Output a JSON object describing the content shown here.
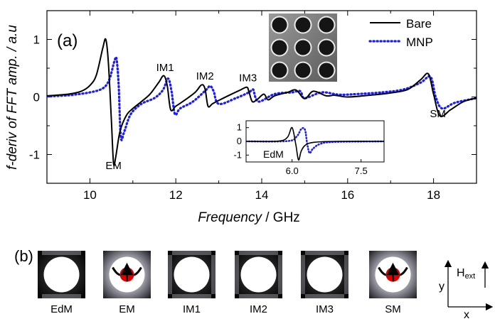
{
  "chart_data": [
    {
      "panel_label": "(a)",
      "type": "line",
      "title": "",
      "xlabel_italic": "Frequency",
      "xlabel_rest": " / GHz",
      "ylabel": "f-deriv of FFT amp. / a.u",
      "xlim": [
        9,
        19
      ],
      "ylim": [
        -1.5,
        1.5
      ],
      "xticks": [
        "10",
        "12",
        "14",
        "16",
        "18"
      ],
      "xtick_values": [
        10,
        12,
        14,
        16,
        18
      ],
      "yticks": [
        "-1",
        "0",
        "1"
      ],
      "ytick_values": [
        -1,
        0,
        1
      ],
      "legend": {
        "placement": "top-right",
        "entries": [
          "Bare",
          "MNP"
        ]
      },
      "series": [
        {
          "name": "Bare",
          "style": "solid",
          "color": "#000000",
          "x": [
            9.0,
            9.5,
            9.8,
            10.0,
            10.15,
            10.3,
            10.37,
            10.43,
            10.5,
            10.55,
            10.6,
            10.7,
            10.85,
            11.0,
            11.2,
            11.4,
            11.6,
            11.72,
            11.8,
            11.88,
            12.0,
            12.2,
            12.45,
            12.6,
            12.68,
            12.75,
            12.85,
            13.0,
            13.3,
            13.5,
            13.65,
            13.7,
            13.78,
            13.9,
            14.05,
            14.15,
            14.3,
            14.6,
            14.8,
            15.0,
            15.2,
            15.5,
            15.7,
            16.0,
            16.5,
            17.0,
            17.4,
            17.7,
            17.88,
            18.0,
            18.15,
            18.4,
            18.7,
            19.0
          ],
          "y": [
            0.02,
            0.05,
            0.1,
            0.2,
            0.38,
            0.85,
            1.0,
            0.6,
            -0.4,
            -1.15,
            -1.05,
            -0.6,
            -0.32,
            -0.2,
            -0.08,
            0.05,
            0.25,
            0.37,
            0.2,
            -0.22,
            -0.16,
            -0.06,
            0.08,
            0.21,
            0.14,
            -0.16,
            -0.12,
            -0.06,
            0.05,
            0.12,
            0.17,
            0.1,
            -0.08,
            -0.04,
            0.05,
            -0.05,
            0.02,
            0.08,
            0.12,
            -0.03,
            0.1,
            0.02,
            0.03,
            0.0,
            0.03,
            0.07,
            0.13,
            0.3,
            0.4,
            0.05,
            -0.33,
            -0.22,
            -0.08,
            -0.02
          ]
        },
        {
          "name": "MNP",
          "style": "dotted",
          "color": "#1a1aff",
          "x": [
            9.0,
            9.5,
            10.0,
            10.3,
            10.45,
            10.57,
            10.62,
            10.67,
            10.72,
            10.8,
            10.95,
            11.2,
            11.5,
            11.7,
            11.82,
            11.9,
            11.98,
            12.1,
            12.4,
            12.7,
            12.8,
            12.88,
            13.0,
            13.4,
            13.7,
            13.8,
            13.85,
            13.95,
            14.3,
            14.7,
            14.9,
            15.0,
            15.4,
            15.8,
            16.2,
            16.8,
            17.3,
            17.7,
            17.93,
            18.05,
            18.2,
            18.5,
            19.0
          ],
          "y": [
            0.01,
            0.03,
            0.08,
            0.15,
            0.3,
            0.62,
            0.66,
            0.2,
            -0.7,
            -0.6,
            -0.3,
            -0.12,
            -0.02,
            0.12,
            0.32,
            0.1,
            -0.3,
            -0.2,
            -0.08,
            0.12,
            0.19,
            0.1,
            -0.12,
            -0.02,
            0.08,
            0.13,
            0.0,
            -0.08,
            0.05,
            0.08,
            0.1,
            -0.02,
            0.08,
            0.04,
            0.05,
            0.08,
            0.13,
            0.25,
            0.35,
            0.0,
            -0.2,
            -0.1,
            -0.02
          ]
        }
      ],
      "annotations": [
        "EM",
        "IM1",
        "IM2",
        "IM3",
        "SM"
      ],
      "annotation_x": [
        10.55,
        11.75,
        12.68,
        13.68,
        18.1
      ],
      "annotation_y": [
        -1.25,
        0.45,
        0.3,
        0.27,
        -0.35
      ],
      "inset": {
        "label": "EdM",
        "xlim": [
          5.0,
          8.0
        ],
        "ylim": [
          -1.5,
          1.5
        ],
        "xticks": [
          "6.0",
          "7.5"
        ],
        "xtick_values": [
          6.0,
          7.5
        ],
        "yticks": [
          "1",
          "0",
          "-1"
        ],
        "ytick_values": [
          1,
          0,
          -1
        ],
        "series": [
          {
            "name": "Bare",
            "style": "solid",
            "color": "#000000",
            "x": [
              5.0,
              5.7,
              5.9,
              6.0,
              6.08,
              6.14,
              6.2,
              6.3,
              6.5,
              7.0,
              8.0
            ],
            "y": [
              0.0,
              0.02,
              0.3,
              1.0,
              -0.2,
              -1.35,
              -0.7,
              -0.25,
              -0.06,
              0.0,
              0.0
            ]
          },
          {
            "name": "MNP",
            "style": "dotted",
            "color": "#1a1aff",
            "x": [
              5.0,
              5.9,
              6.1,
              6.2,
              6.28,
              6.33,
              6.38,
              6.45,
              6.6,
              6.9,
              8.0
            ],
            "y": [
              0.0,
              0.02,
              0.35,
              0.9,
              0.85,
              -0.2,
              -0.85,
              -0.55,
              -0.2,
              -0.04,
              0.0
            ]
          }
        ]
      }
    },
    {
      "panel_label": "(b)",
      "type": "image_grid",
      "tiles": [
        "EdM",
        "EM",
        "IM1",
        "IM2",
        "IM3",
        "SM"
      ],
      "axes": {
        "y": "y",
        "x": "x",
        "field_main": "H",
        "field_sub": "ext"
      }
    }
  ]
}
